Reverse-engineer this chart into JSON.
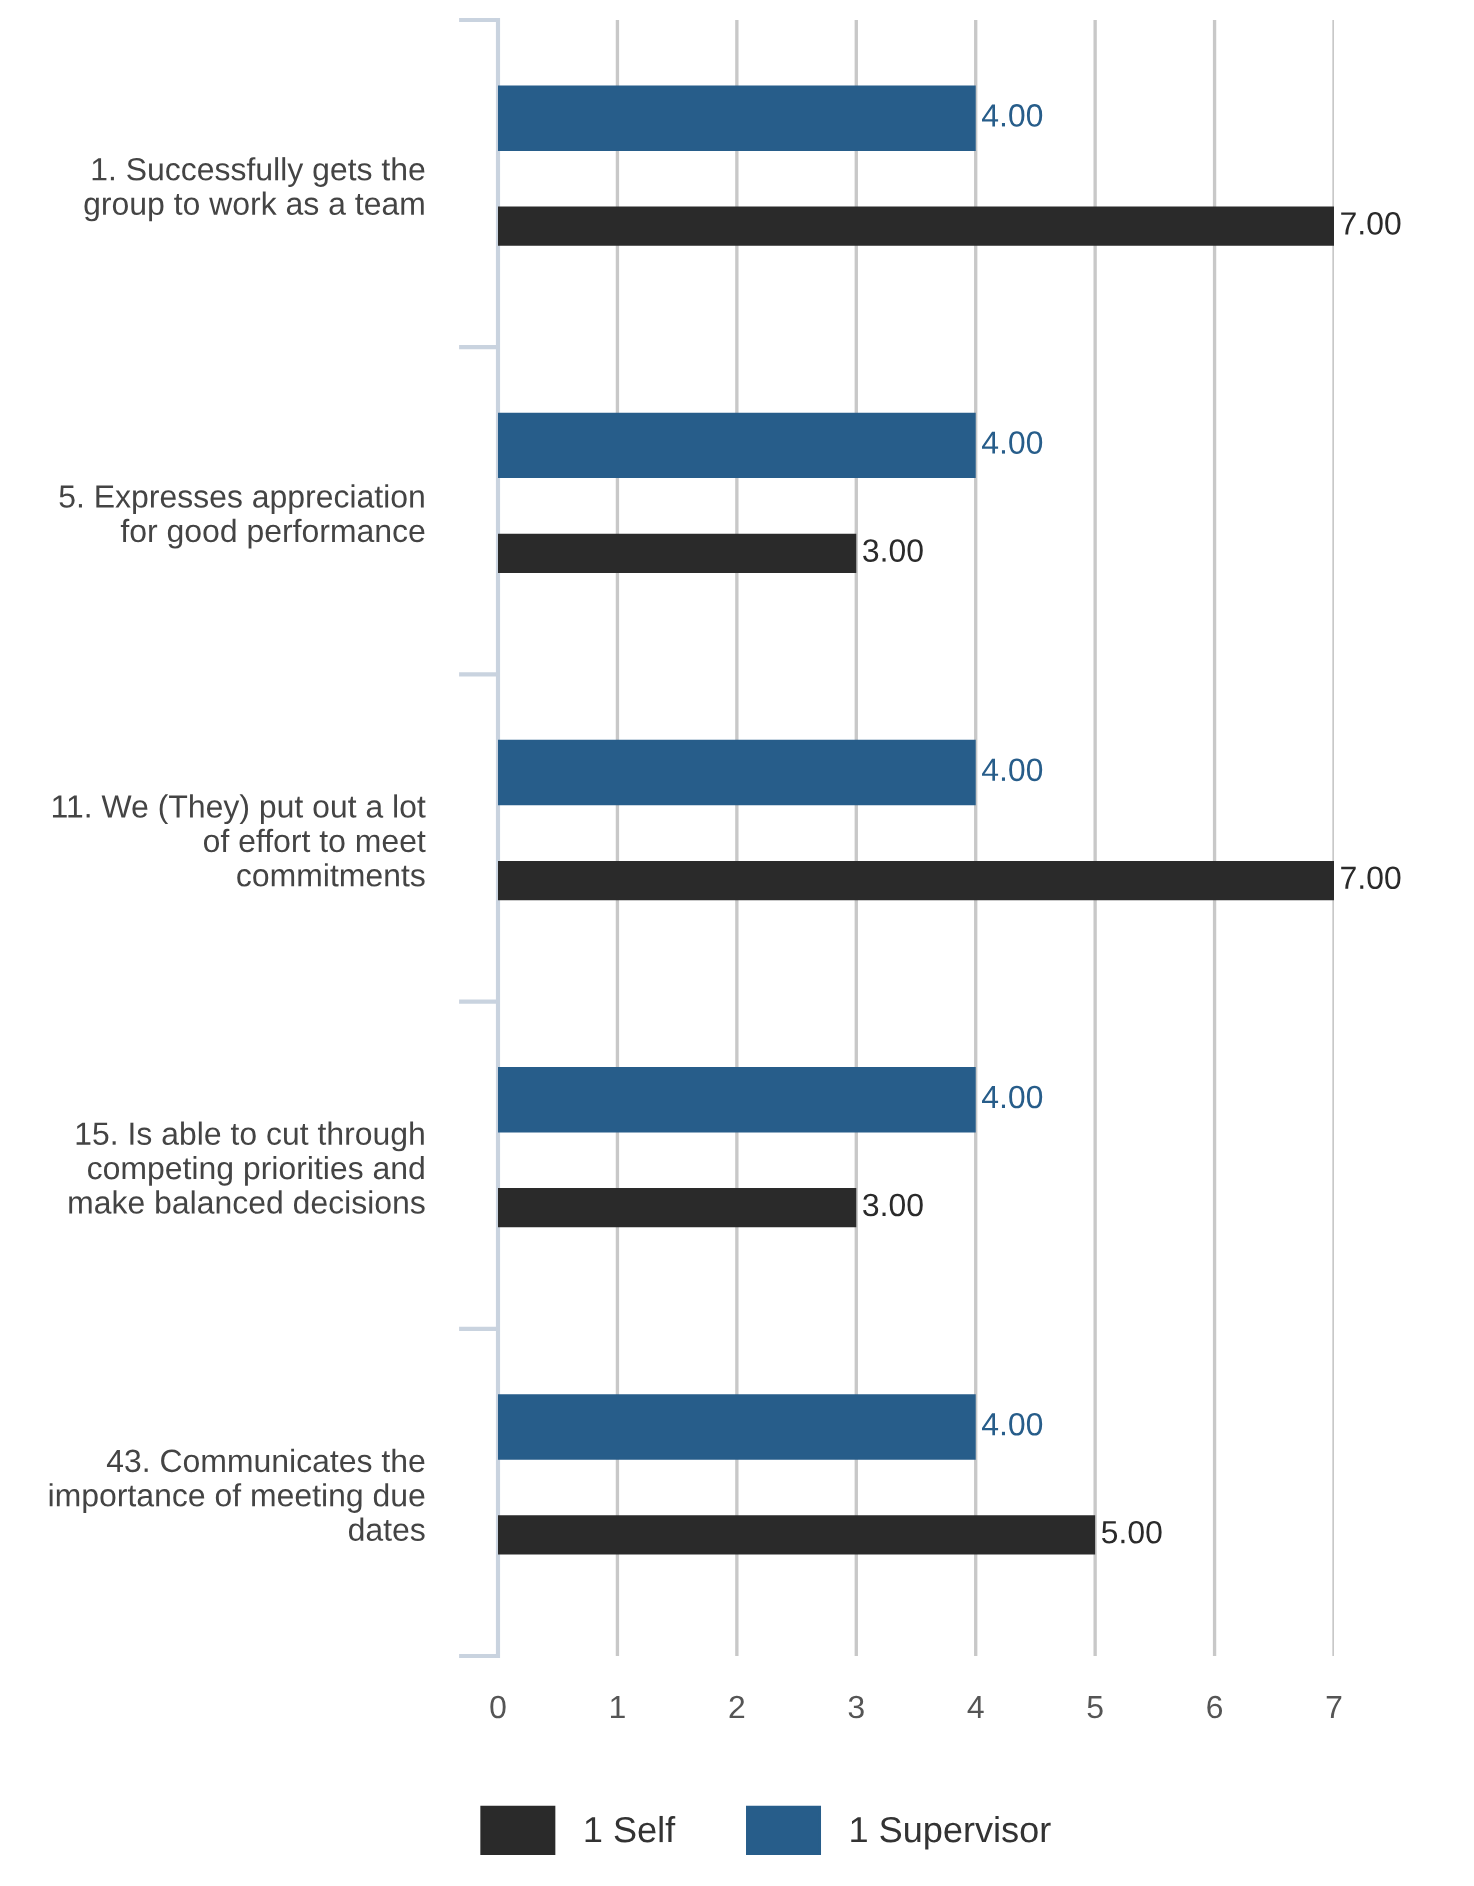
{
  "chart_data": {
    "type": "bar",
    "orientation": "horizontal",
    "categories": [
      "1. Successfully gets the\ngroup to work as a team",
      "5. Expresses appreciation\nfor good performance",
      "11. We (They) put out a lot\nof effort to meet\ncommitments",
      "15. Is able to cut through\ncompeting priorities and\nmake balanced decisions",
      "43. Communicates the\nimportance of meeting due\ndates"
    ],
    "series": [
      {
        "name": "1 Self",
        "color": "#2a2a2a",
        "values": [
          7,
          3,
          7,
          3,
          5
        ]
      },
      {
        "name": "1 Supervisor",
        "color": "#275d8a",
        "values": [
          4,
          4,
          4,
          4,
          4
        ]
      }
    ],
    "value_labels": [
      [
        "7.00",
        "3.00",
        "7.00",
        "3.00",
        "5.00"
      ],
      [
        "4.00",
        "4.00",
        "4.00",
        "4.00",
        "4.00"
      ]
    ],
    "xlim": [
      0,
      7
    ],
    "xticks": [
      0,
      1,
      2,
      3,
      4,
      5,
      6,
      7
    ],
    "grid": "x",
    "legend": "bottom"
  }
}
